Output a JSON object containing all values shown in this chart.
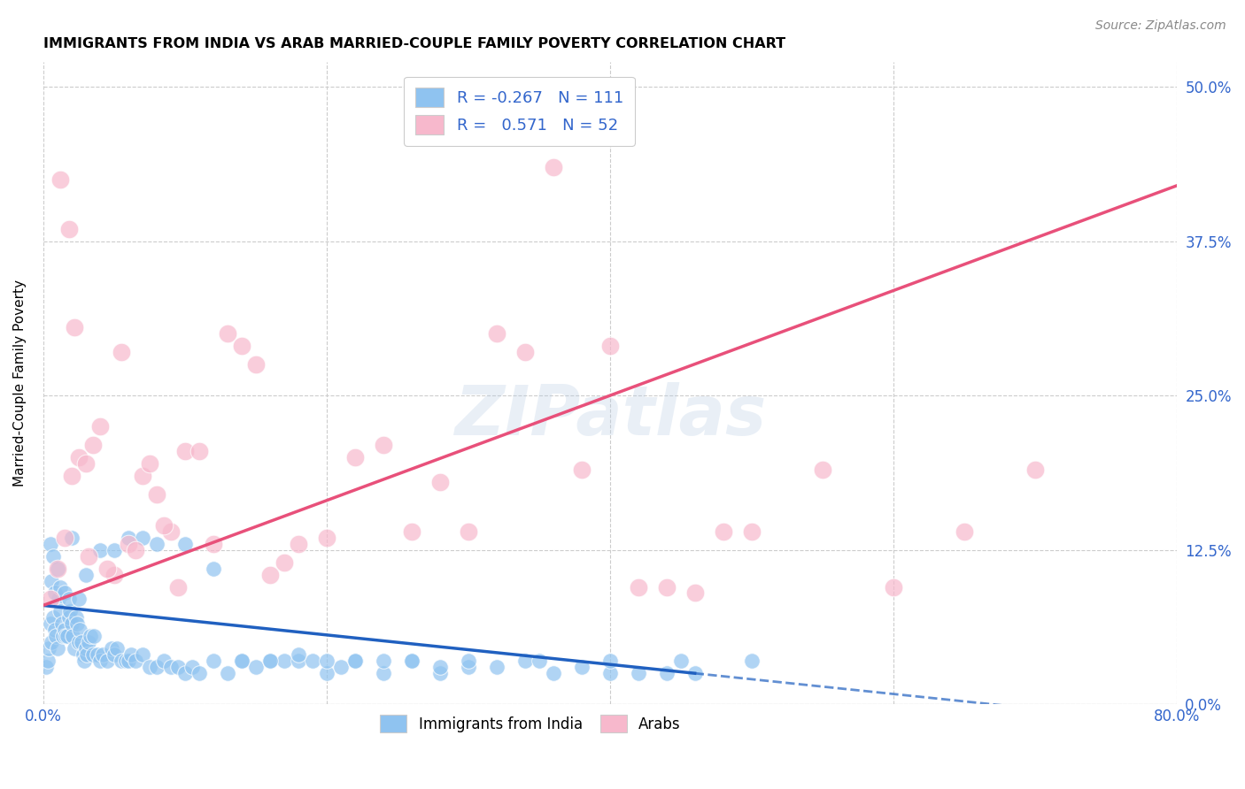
{
  "title": "IMMIGRANTS FROM INDIA VS ARAB MARRIED-COUPLE FAMILY POVERTY CORRELATION CHART",
  "source": "Source: ZipAtlas.com",
  "ylabel": "Married-Couple Family Poverty",
  "ytick_labels": [
    "0.0%",
    "12.5%",
    "25.0%",
    "37.5%",
    "50.0%"
  ],
  "ytick_values": [
    0.0,
    12.5,
    25.0,
    37.5,
    50.0
  ],
  "xlim": [
    0.0,
    80.0
  ],
  "ylim": [
    0.0,
    52.0
  ],
  "india_R": -0.267,
  "india_N": 111,
  "arab_R": 0.571,
  "arab_N": 52,
  "india_color": "#8fc3f0",
  "arab_color": "#f7b8cc",
  "india_line_color": "#2060c0",
  "arab_line_color": "#e8507a",
  "watermark": "ZIPatlas",
  "india_scatter_x": [
    0.2,
    0.3,
    0.4,
    0.5,
    0.6,
    0.7,
    0.8,
    0.9,
    1.0,
    1.1,
    1.2,
    1.3,
    1.4,
    1.5,
    1.6,
    1.7,
    1.8,
    1.9,
    2.0,
    2.1,
    2.2,
    2.3,
    2.4,
    2.5,
    2.6,
    2.7,
    2.8,
    2.9,
    3.0,
    3.1,
    3.2,
    3.3,
    3.5,
    3.6,
    3.8,
    4.0,
    4.2,
    4.5,
    4.8,
    5.0,
    5.2,
    5.5,
    5.8,
    6.0,
    6.2,
    6.5,
    7.0,
    7.5,
    8.0,
    8.5,
    9.0,
    9.5,
    10.0,
    10.5,
    11.0,
    12.0,
    13.0,
    14.0,
    15.0,
    16.0,
    17.0,
    18.0,
    19.0,
    20.0,
    21.0,
    22.0,
    24.0,
    26.0,
    28.0,
    30.0,
    32.0,
    34.0,
    36.0,
    38.0,
    40.0,
    42.0,
    44.0,
    46.0,
    0.5,
    0.6,
    0.7,
    0.8,
    1.0,
    1.2,
    1.5,
    1.8,
    2.0,
    2.5,
    3.0,
    4.0,
    5.0,
    6.0,
    7.0,
    8.0,
    10.0,
    12.0,
    14.0,
    16.0,
    18.0,
    20.0,
    22.0,
    24.0,
    26.0,
    28.0,
    30.0,
    35.0,
    40.0,
    45.0,
    50.0
  ],
  "india_scatter_y": [
    3.0,
    3.5,
    4.5,
    6.5,
    5.0,
    7.0,
    6.0,
    5.5,
    4.5,
    8.5,
    7.5,
    6.5,
    5.5,
    6.0,
    5.5,
    5.5,
    7.0,
    7.5,
    6.5,
    5.5,
    4.5,
    7.0,
    6.5,
    5.0,
    6.0,
    5.0,
    4.0,
    3.5,
    4.5,
    4.0,
    5.0,
    5.5,
    4.0,
    5.5,
    4.0,
    3.5,
    4.0,
    3.5,
    4.5,
    4.0,
    4.5,
    3.5,
    3.5,
    3.5,
    4.0,
    3.5,
    4.0,
    3.0,
    3.0,
    3.5,
    3.0,
    3.0,
    2.5,
    3.0,
    2.5,
    3.5,
    2.5,
    3.5,
    3.0,
    3.5,
    3.5,
    3.5,
    3.5,
    2.5,
    3.0,
    3.5,
    2.5,
    3.5,
    2.5,
    3.0,
    3.0,
    3.5,
    2.5,
    3.0,
    2.5,
    2.5,
    2.5,
    2.5,
    13.0,
    10.0,
    12.0,
    9.0,
    11.0,
    9.5,
    9.0,
    8.5,
    13.5,
    8.5,
    10.5,
    12.5,
    12.5,
    13.5,
    13.5,
    13.0,
    13.0,
    11.0,
    3.5,
    3.5,
    4.0,
    3.5,
    3.5,
    3.5,
    3.5,
    3.0,
    3.5,
    3.5,
    3.5,
    3.5,
    3.5
  ],
  "arab_scatter_x": [
    0.5,
    1.0,
    1.5,
    2.0,
    2.5,
    3.0,
    3.5,
    4.0,
    5.0,
    6.0,
    7.0,
    8.0,
    9.0,
    10.0,
    11.0,
    12.0,
    13.0,
    14.0,
    15.0,
    16.0,
    17.0,
    18.0,
    20.0,
    22.0,
    24.0,
    26.0,
    28.0,
    30.0,
    32.0,
    34.0,
    36.0,
    38.0,
    40.0,
    42.0,
    44.0,
    46.0,
    48.0,
    50.0,
    55.0,
    60.0,
    65.0,
    70.0,
    1.2,
    1.8,
    2.2,
    3.2,
    4.5,
    5.5,
    6.5,
    7.5,
    8.5,
    9.5
  ],
  "arab_scatter_y": [
    8.5,
    11.0,
    13.5,
    18.5,
    20.0,
    19.5,
    21.0,
    22.5,
    10.5,
    13.0,
    18.5,
    17.0,
    14.0,
    20.5,
    20.5,
    13.0,
    30.0,
    29.0,
    27.5,
    10.5,
    11.5,
    13.0,
    13.5,
    20.0,
    21.0,
    14.0,
    18.0,
    14.0,
    30.0,
    28.5,
    43.5,
    19.0,
    29.0,
    9.5,
    9.5,
    9.0,
    14.0,
    14.0,
    19.0,
    9.5,
    14.0,
    19.0,
    42.5,
    38.5,
    30.5,
    12.0,
    11.0,
    28.5,
    12.5,
    19.5,
    14.5,
    9.5
  ]
}
